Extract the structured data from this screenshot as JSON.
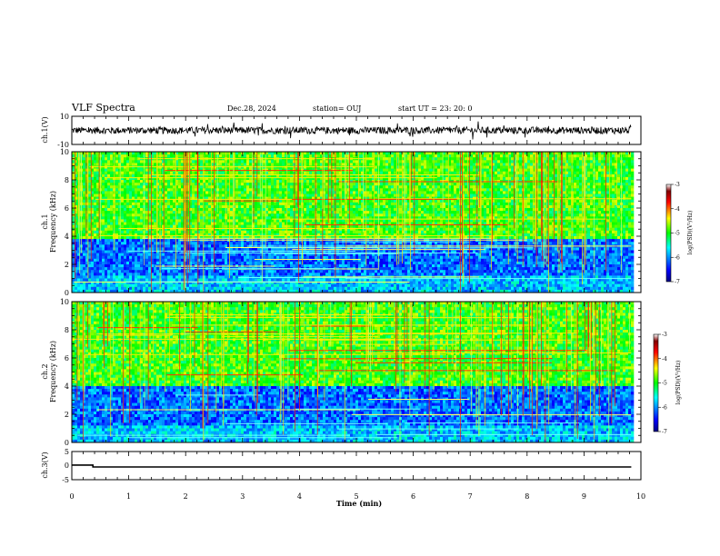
{
  "header": {
    "title": "VLF Spectra",
    "date": "Dec.28, 2024",
    "station": "station= OUJ",
    "start": "start  UT  =   23: 20: 0"
  },
  "chart_data": [
    {
      "type": "line",
      "panel": "ch1-waveform",
      "ylabel": "ch.1(V)",
      "ylim": [
        -10,
        10
      ],
      "yticks": [
        "10",
        "-10"
      ],
      "x_range_min": [
        0,
        9.83
      ],
      "baseline_v": 0,
      "noise_amplitude_v": 2.5,
      "color": "#000000"
    },
    {
      "type": "heatmap",
      "panel": "ch1-spectrogram",
      "ylabel": "ch.1\nFrequency (kHz)",
      "ylabel_lines": [
        "ch.1",
        "Frequency (kHz)"
      ],
      "ylim": [
        0,
        10
      ],
      "yticks": [
        "0",
        "2",
        "4",
        "6",
        "8",
        "10"
      ],
      "x_range_min": [
        0,
        9.83
      ],
      "colorbar": {
        "label": "log(PSD)(V²/Hz)",
        "range": [
          -7,
          -3
        ],
        "ticks": [
          "-3",
          "-4",
          "-5",
          "-6",
          "-7"
        ],
        "colors": [
          "#000080",
          "#0000ff",
          "#00ffff",
          "#00ff00",
          "#ffff00",
          "#ff0000",
          "#800000",
          "#ffffff"
        ]
      },
      "dark_band_khz": [
        0,
        4
      ],
      "bright_band_khz": [
        4,
        10
      ]
    },
    {
      "type": "heatmap",
      "panel": "ch2-spectrogram",
      "ylabel": "ch.2\nFrequency (kHz)",
      "ylabel_lines": [
        "ch.2",
        "Frequency (kHz)"
      ],
      "ylim": [
        0,
        10
      ],
      "yticks": [
        "0",
        "2",
        "4",
        "6",
        "8",
        "10"
      ],
      "x_range_min": [
        0,
        9.83
      ],
      "colorbar": {
        "label": "log(PSD)(V²/Hz)",
        "range": [
          -7,
          -3
        ],
        "ticks": [
          "-3",
          "-4",
          "-5",
          "-6",
          "-7"
        ],
        "colors": [
          "#000080",
          "#0000ff",
          "#00ffff",
          "#00ff00",
          "#ffff00",
          "#ff0000",
          "#800000",
          "#ffffff"
        ]
      },
      "dark_band_khz": [
        0,
        4
      ],
      "bright_band_khz": [
        4,
        10
      ]
    },
    {
      "type": "line",
      "panel": "ch3-waveform",
      "ylabel": "ch.3(V)",
      "ylim": [
        -5,
        5
      ],
      "yticks": [
        "5",
        "0",
        "-5"
      ],
      "x": [
        0,
        0.37,
        0.37,
        9.83
      ],
      "y": [
        0.2,
        0.2,
        -0.5,
        -0.5
      ],
      "color": "#000000"
    }
  ],
  "xaxis": {
    "label": "Time (min)",
    "ticks": [
      "0",
      "1",
      "2",
      "3",
      "4",
      "5",
      "6",
      "7",
      "8",
      "9",
      "10"
    ],
    "xlim": [
      0,
      10
    ]
  }
}
